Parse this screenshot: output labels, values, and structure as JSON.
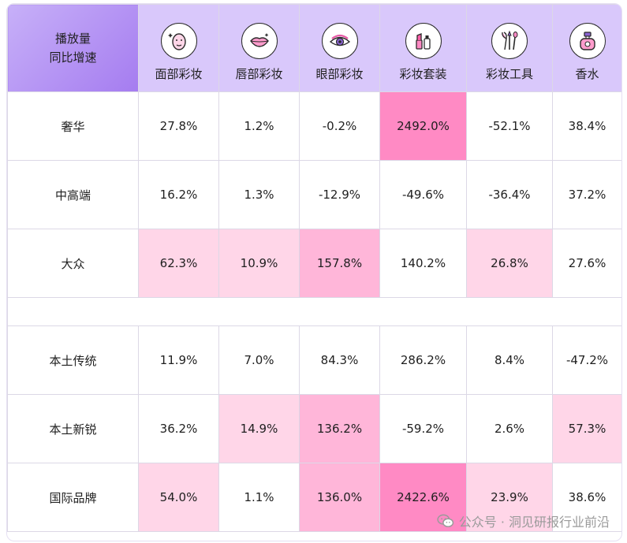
{
  "chart_data": {
    "type": "table",
    "corner_header": [
      "播放量",
      "同比增速"
    ],
    "columns": [
      {
        "label": "面部彩妆",
        "icon": "face-mask-icon"
      },
      {
        "label": "唇部彩妆",
        "icon": "lips-icon"
      },
      {
        "label": "眼部彩妆",
        "icon": "eye-icon"
      },
      {
        "label": "彩妆套装",
        "icon": "makeup-set-icon"
      },
      {
        "label": "彩妆工具",
        "icon": "brushes-icon"
      },
      {
        "label": "香水",
        "icon": "perfume-icon"
      }
    ],
    "groups": [
      {
        "rows": [
          {
            "label": "奢华",
            "values": [
              "27.8%",
              "1.2%",
              "-0.2%",
              "2492.0%",
              "-52.1%",
              "38.4%"
            ],
            "colors": [
              "#ffffff",
              "#ffffff",
              "#ffffff",
              "#ff8ac4",
              "#ffffff",
              "#ffffff"
            ]
          },
          {
            "label": "中高端",
            "values": [
              "16.2%",
              "1.3%",
              "-12.9%",
              "-49.6%",
              "-36.4%",
              "37.2%"
            ],
            "colors": [
              "#ffffff",
              "#ffffff",
              "#ffffff",
              "#ffffff",
              "#ffffff",
              "#ffffff"
            ]
          },
          {
            "label": "大众",
            "values": [
              "62.3%",
              "10.9%",
              "157.8%",
              "140.2%",
              "26.8%",
              "27.6%"
            ],
            "colors": [
              "#ffd6e8",
              "#ffd6e8",
              "#ffb6d9",
              "#ffffff",
              "#ffd6e8",
              "#ffffff"
            ]
          }
        ]
      },
      {
        "rows": [
          {
            "label": "本土传统",
            "values": [
              "11.9%",
              "7.0%",
              "84.3%",
              "286.2%",
              "8.4%",
              "-47.2%"
            ],
            "colors": [
              "#ffffff",
              "#ffffff",
              "#ffffff",
              "#ffffff",
              "#ffffff",
              "#ffffff"
            ]
          },
          {
            "label": "本土新锐",
            "values": [
              "36.2%",
              "14.9%",
              "136.2%",
              "-59.2%",
              "2.6%",
              "57.3%"
            ],
            "colors": [
              "#ffffff",
              "#ffd6e8",
              "#ffb6d9",
              "#ffffff",
              "#ffffff",
              "#ffd6e8"
            ]
          },
          {
            "label": "国际品牌",
            "values": [
              "54.0%",
              "1.1%",
              "136.0%",
              "2422.6%",
              "23.9%",
              "38.6%"
            ],
            "colors": [
              "#ffd6e8",
              "#ffffff",
              "#ffb6d9",
              "#ff8ac4",
              "#ffd6e8",
              "#ffffff"
            ]
          }
        ]
      }
    ]
  },
  "colors": {
    "header_bg": "#d9c8fb",
    "corner_bg": "#a57cf0",
    "grid": "#dcd8e6"
  },
  "watermark": {
    "text": "公众号 · 洞见研报行业前沿",
    "icon": "wechat-icon"
  }
}
